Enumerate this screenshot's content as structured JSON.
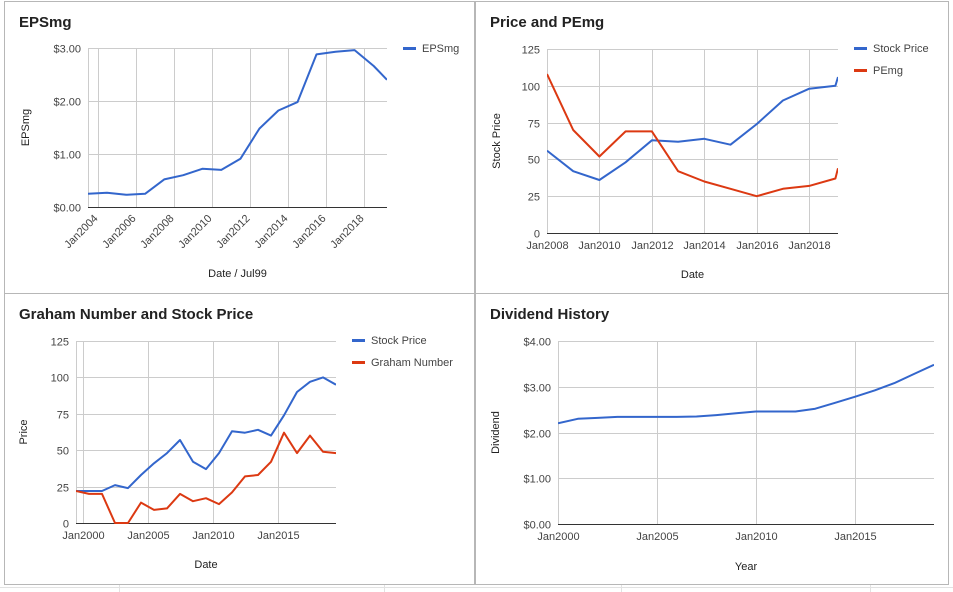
{
  "colors": {
    "blue": "#3366cc",
    "red": "#dc3912",
    "grid": "#cccccc",
    "axis": "#333333",
    "text": "#444444"
  },
  "chart_data": [
    {
      "id": "eps",
      "type": "line",
      "title": "EPSmg",
      "xlabel": "Date / Jul99",
      "ylabel": "EPSmg",
      "ylim": [
        0,
        3
      ],
      "yticks": [
        "$0.00",
        "$1.00",
        "$2.00",
        "$3.00"
      ],
      "xlim": [
        2003.5,
        2019.2
      ],
      "xticks": [
        2004,
        2006,
        2008,
        2010,
        2012,
        2014,
        2016,
        2018
      ],
      "xtick_labels": [
        "Jan2004",
        "Jan2006",
        "Jan2008",
        "Jan2010",
        "Jan2012",
        "Jan2014",
        "Jan2016",
        "Jan2018"
      ],
      "legend": "top-right",
      "grid": true,
      "series": [
        {
          "name": "EPSmg",
          "color": "#3366cc",
          "x": [
            2003.5,
            2004.5,
            2005.5,
            2006.5,
            2007.5,
            2008.5,
            2009.5,
            2010.5,
            2011.5,
            2012.5,
            2013.5,
            2014.5,
            2015.5,
            2016.5,
            2017.5,
            2018.5,
            2019.2
          ],
          "y": [
            0.25,
            0.27,
            0.23,
            0.25,
            0.52,
            0.6,
            0.72,
            0.7,
            0.91,
            1.48,
            1.82,
            1.98,
            2.88,
            2.93,
            2.96,
            2.66,
            2.4
          ]
        }
      ]
    },
    {
      "id": "pe",
      "type": "line",
      "title": "Price and PEmg",
      "xlabel": "Date",
      "ylabel": "Stock Price",
      "ylim": [
        0,
        125
      ],
      "yticks": [
        "0",
        "25",
        "50",
        "75",
        "100",
        "125"
      ],
      "xlim": [
        2008,
        2019.1
      ],
      "xticks": [
        2008,
        2010,
        2012,
        2014,
        2016,
        2018
      ],
      "xtick_labels": [
        "Jan2008",
        "Jan2010",
        "Jan2012",
        "Jan2014",
        "Jan2016",
        "Jan2018"
      ],
      "legend": "top-right",
      "grid": true,
      "series": [
        {
          "name": "Stock Price",
          "color": "#3366cc",
          "x": [
            2008,
            2009,
            2010,
            2011,
            2012,
            2013,
            2014,
            2015,
            2016,
            2017,
            2018,
            2019,
            2019.1
          ],
          "y": [
            56,
            42,
            36,
            48,
            63,
            62,
            64,
            60,
            74,
            90,
            98,
            100,
            106
          ]
        },
        {
          "name": "PEmg",
          "color": "#dc3912",
          "x": [
            2008,
            2009,
            2010,
            2011,
            2012,
            2013,
            2014,
            2015,
            2016,
            2017,
            2018,
            2019,
            2019.1
          ],
          "y": [
            108,
            70,
            52,
            69,
            69,
            42,
            35,
            30,
            25,
            30,
            32,
            37,
            44
          ]
        }
      ]
    },
    {
      "id": "graham",
      "type": "line",
      "title": "Graham Number and Stock Price",
      "xlabel": "Date",
      "ylabel": "Price",
      "ylim": [
        0,
        125
      ],
      "yticks": [
        "0",
        "25",
        "50",
        "75",
        "100",
        "125"
      ],
      "xlim": [
        1999.5,
        2019.5
      ],
      "xticks": [
        2000,
        2005,
        2010,
        2015
      ],
      "xtick_labels": [
        "Jan2000",
        "Jan2005",
        "Jan2010",
        "Jan2015"
      ],
      "legend": "top-right",
      "grid": true,
      "series": [
        {
          "name": "Stock Price",
          "color": "#3366cc",
          "x": [
            1999.5,
            2000.5,
            2001.5,
            2002.5,
            2003.5,
            2004.5,
            2005.5,
            2006.5,
            2007.5,
            2008.5,
            2009.5,
            2010.5,
            2011.5,
            2012.5,
            2013.5,
            2014.5,
            2015.5,
            2016.5,
            2017.5,
            2018.5,
            2019.5
          ],
          "y": [
            22,
            22,
            22,
            26,
            24,
            33,
            41,
            48,
            57,
            42,
            37,
            48,
            63,
            62,
            64,
            60,
            74,
            90,
            97,
            100,
            95
          ]
        },
        {
          "name": "Graham Number",
          "color": "#dc3912",
          "x": [
            1999.5,
            2000.5,
            2001.5,
            2002.5,
            2003.5,
            2004.5,
            2005.5,
            2006.5,
            2007.5,
            2008.5,
            2009.5,
            2010.5,
            2011.5,
            2012.5,
            2013.5,
            2014.5,
            2015.5,
            2016.5,
            2017.5,
            2018.5,
            2019.5
          ],
          "y": [
            22,
            20,
            20,
            0,
            0,
            14,
            9,
            10,
            20,
            15,
            17,
            13,
            21,
            32,
            33,
            42,
            62,
            48,
            60,
            49,
            48
          ]
        }
      ]
    },
    {
      "id": "dividend",
      "type": "line",
      "title": "Dividend History",
      "xlabel": "Year",
      "ylabel": "Dividend",
      "ylim": [
        0,
        4
      ],
      "yticks": [
        "$0.00",
        "$1.00",
        "$2.00",
        "$3.00",
        "$4.00"
      ],
      "xlim": [
        2000,
        2019
      ],
      "xticks": [
        2000,
        2005,
        2010,
        2015
      ],
      "xtick_labels": [
        "Jan2000",
        "Jan2005",
        "Jan2010",
        "Jan2015"
      ],
      "legend": "none",
      "grid": true,
      "series": [
        {
          "name": "",
          "color": "#3366cc",
          "x": [
            2000,
            2001,
            2002,
            2003,
            2004,
            2005,
            2006,
            2007,
            2008,
            2009,
            2010,
            2011,
            2012,
            2013,
            2014,
            2015,
            2016,
            2017,
            2018,
            2019
          ],
          "y": [
            2.2,
            2.3,
            2.32,
            2.34,
            2.34,
            2.34,
            2.34,
            2.35,
            2.38,
            2.42,
            2.46,
            2.46,
            2.46,
            2.52,
            2.65,
            2.78,
            2.92,
            3.08,
            3.28,
            3.48
          ]
        }
      ]
    }
  ]
}
